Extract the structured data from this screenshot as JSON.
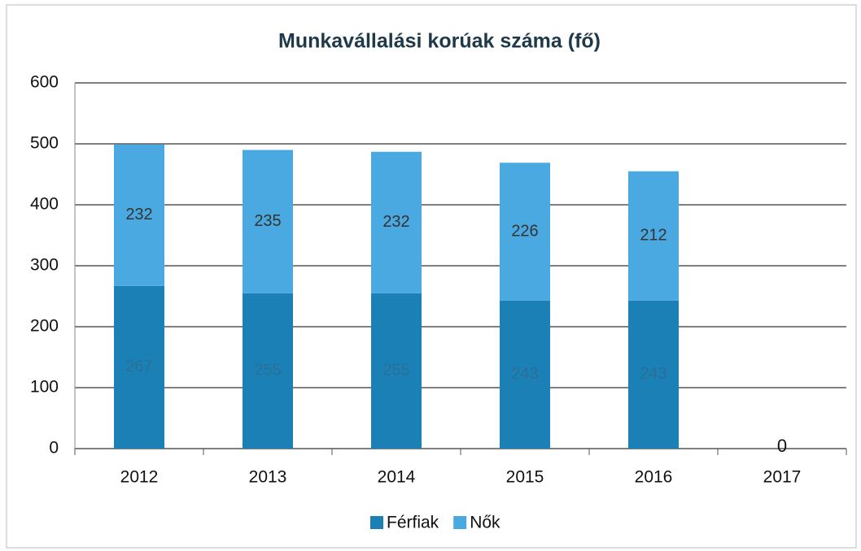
{
  "chart_data": {
    "type": "stacked_bar",
    "title": "Munkavállalási korúak száma (fő)",
    "categories": [
      "2012",
      "2013",
      "2014",
      "2015",
      "2016",
      "2017"
    ],
    "series": [
      {
        "name": "Férfiak",
        "color": "#1a80b6",
        "values": [
          267,
          255,
          255,
          243,
          243,
          0
        ]
      },
      {
        "name": "Nők",
        "color": "#4ba9e1",
        "values": [
          232,
          235,
          232,
          226,
          212,
          null
        ]
      }
    ],
    "ylim": [
      0,
      600
    ],
    "yticks": [
      0,
      100,
      200,
      300,
      400,
      500,
      600
    ],
    "grid": true,
    "legend": "bottom"
  }
}
